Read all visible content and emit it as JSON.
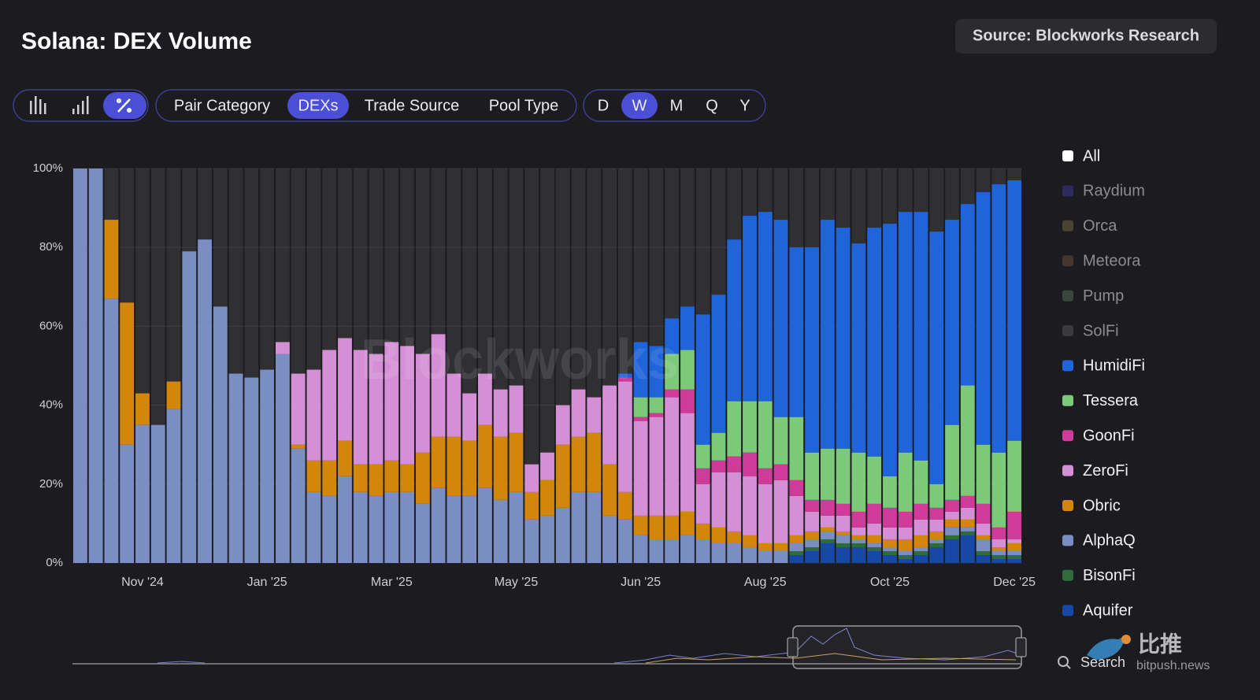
{
  "chart_data": {
    "type": "stacked_percent_bar",
    "title": "Solana: DEX Volume",
    "source": "Source: Blockworks Research",
    "categories": [
      null,
      null,
      null,
      null,
      "Nov '24",
      null,
      null,
      null,
      null,
      null,
      null,
      null,
      "Jan '25",
      null,
      null,
      null,
      null,
      null,
      null,
      null,
      "Mar '25",
      null,
      null,
      null,
      null,
      null,
      null,
      null,
      "May '25",
      null,
      null,
      null,
      null,
      null,
      null,
      null,
      "Jun '25",
      null,
      null,
      null,
      null,
      null,
      null,
      null,
      "Aug '25",
      null,
      null,
      null,
      null,
      null,
      null,
      null,
      "Oct '25",
      null,
      null,
      null,
      null,
      null,
      null,
      null,
      "Dec '25"
    ],
    "ylim": [
      0,
      100
    ],
    "yticks": [
      {
        "value": 0,
        "label": "0%"
      },
      {
        "value": 20,
        "label": "20%"
      },
      {
        "value": 40,
        "label": "40%"
      },
      {
        "value": 60,
        "label": "60%"
      },
      {
        "value": 80,
        "label": "80%"
      },
      {
        "value": 100,
        "label": "100%"
      }
    ],
    "grid": true,
    "legend_other": [
      {
        "name": "All",
        "color": "#ffffff",
        "hidden": false
      },
      {
        "name": "Raydium",
        "color": "#2d2a5e",
        "hidden": true
      },
      {
        "name": "Orca",
        "color": "#4a4333",
        "hidden": true
      },
      {
        "name": "Meteora",
        "color": "#44362e",
        "hidden": true
      },
      {
        "name": "Pump",
        "color": "#38463d",
        "hidden": true
      },
      {
        "name": "SolFi",
        "color": "#3a3a3d",
        "hidden": true
      }
    ],
    "series": [
      {
        "name": "HumidiFi",
        "color": "#1f64d8",
        "values": [
          0,
          0,
          0,
          0,
          0,
          0,
          0,
          0,
          0,
          0,
          0,
          0,
          0,
          0,
          0,
          0,
          0,
          0,
          0,
          0,
          0,
          0,
          0,
          0,
          0,
          0,
          0,
          0,
          0,
          0,
          0,
          0,
          0,
          0,
          0,
          1,
          14,
          13,
          9,
          11,
          33,
          35,
          41,
          47,
          48,
          50,
          43,
          52,
          58,
          56,
          53,
          58,
          64,
          61,
          63,
          64,
          52,
          46,
          64,
          68,
          66
        ]
      },
      {
        "name": "Tessera",
        "color": "#7cc97a",
        "values": [
          0,
          0,
          0,
          0,
          0,
          0,
          0,
          0,
          0,
          0,
          0,
          0,
          0,
          0,
          0,
          0,
          0,
          0,
          0,
          0,
          0,
          0,
          0,
          0,
          0,
          0,
          0,
          0,
          0,
          0,
          0,
          0,
          0,
          0,
          0,
          0,
          5,
          4,
          9,
          10,
          6,
          7,
          14,
          13,
          17,
          12,
          16,
          12,
          13,
          14,
          15,
          12,
          8,
          15,
          11,
          6,
          19,
          28,
          15,
          19,
          18
        ]
      },
      {
        "name": "GoonFi",
        "color": "#cf3b98",
        "values": [
          0,
          0,
          0,
          0,
          0,
          0,
          0,
          0,
          0,
          0,
          0,
          0,
          0,
          0,
          0,
          0,
          0,
          0,
          0,
          0,
          0,
          0,
          0,
          0,
          0,
          0,
          0,
          0,
          0,
          0,
          0,
          0,
          0,
          0,
          0,
          1,
          1,
          1,
          2,
          6,
          4,
          3,
          4,
          6,
          4,
          4,
          4,
          3,
          4,
          3,
          4,
          5,
          5,
          4,
          4,
          3,
          3,
          3,
          5,
          3,
          7
        ]
      },
      {
        "name": "ZeroFi",
        "color": "#d58fd6",
        "values": [
          0,
          0,
          0,
          0,
          0,
          0,
          0,
          0,
          0,
          0,
          0,
          0,
          0,
          3,
          18,
          23,
          28,
          26,
          29,
          28,
          30,
          30,
          25,
          26,
          16,
          12,
          13,
          12,
          12,
          7,
          7,
          10,
          12,
          9,
          20,
          28,
          24,
          25,
          30,
          25,
          10,
          14,
          15,
          15,
          15,
          16,
          10,
          5,
          3,
          4,
          2,
          3,
          3,
          3,
          4,
          3,
          2,
          3,
          3,
          2,
          1
        ]
      },
      {
        "name": "Obric",
        "color": "#d3860c",
        "values": [
          0,
          0,
          20,
          36,
          8,
          0,
          7,
          0,
          0,
          0,
          0,
          0,
          0,
          0,
          1,
          8,
          9,
          9,
          7,
          8,
          8,
          7,
          13,
          13,
          15,
          14,
          16,
          16,
          15,
          7,
          9,
          16,
          14,
          15,
          13,
          7,
          5,
          6,
          6,
          6,
          4,
          4,
          3,
          3,
          2,
          2,
          2,
          2,
          1,
          1,
          1,
          2,
          2,
          3,
          3,
          2,
          2,
          2,
          1,
          1,
          2
        ]
      },
      {
        "name": "AlphaQ",
        "color": "#7b8ec3",
        "values": [
          100,
          100,
          67,
          30,
          35,
          35,
          39,
          79,
          82,
          65,
          48,
          47,
          49,
          53,
          29,
          18,
          17,
          22,
          18,
          17,
          18,
          18,
          15,
          19,
          17,
          17,
          19,
          16,
          18,
          11,
          12,
          14,
          18,
          18,
          12,
          11,
          7,
          6,
          6,
          7,
          6,
          5,
          5,
          4,
          3,
          3,
          2,
          2,
          2,
          2,
          1,
          1,
          1,
          1,
          1,
          1,
          2,
          1,
          3,
          1,
          1
        ]
      },
      {
        "name": "BisonFi",
        "color": "#2f6b3b",
        "values": [
          0,
          0,
          0,
          0,
          0,
          0,
          0,
          0,
          0,
          0,
          0,
          0,
          0,
          0,
          0,
          0,
          0,
          0,
          0,
          0,
          0,
          0,
          0,
          0,
          0,
          0,
          0,
          0,
          0,
          0,
          0,
          0,
          0,
          0,
          0,
          0,
          0,
          0,
          0,
          0,
          0,
          0,
          0,
          0,
          0,
          0,
          1,
          1,
          1,
          1,
          1,
          1,
          1,
          1,
          1,
          1,
          1,
          1,
          1,
          1,
          1
        ]
      },
      {
        "name": "Aquifer",
        "color": "#1748a8",
        "values": [
          0,
          0,
          0,
          0,
          0,
          0,
          0,
          0,
          0,
          0,
          0,
          0,
          0,
          0,
          0,
          0,
          0,
          0,
          0,
          0,
          0,
          0,
          0,
          0,
          0,
          0,
          0,
          0,
          0,
          0,
          0,
          0,
          0,
          0,
          0,
          0,
          0,
          0,
          0,
          0,
          0,
          0,
          0,
          0,
          0,
          0,
          2,
          3,
          5,
          4,
          4,
          3,
          2,
          1,
          2,
          4,
          6,
          7,
          2,
          1,
          1
        ]
      }
    ]
  },
  "controls": {
    "dimensions": [
      {
        "label": "Pair Category",
        "selected": false
      },
      {
        "label": "DEXs",
        "selected": true
      },
      {
        "label": "Trade Source",
        "selected": false
      },
      {
        "label": "Pool Type",
        "selected": false
      }
    ],
    "periods": [
      {
        "label": "D",
        "selected": false
      },
      {
        "label": "W",
        "selected": true
      },
      {
        "label": "M",
        "selected": false
      },
      {
        "label": "Q",
        "selected": false
      },
      {
        "label": "Y",
        "selected": false
      }
    ],
    "search": "Search"
  },
  "watermarks": {
    "chart": "Blockworks",
    "brand": "比推",
    "site": "bitpush.news"
  }
}
